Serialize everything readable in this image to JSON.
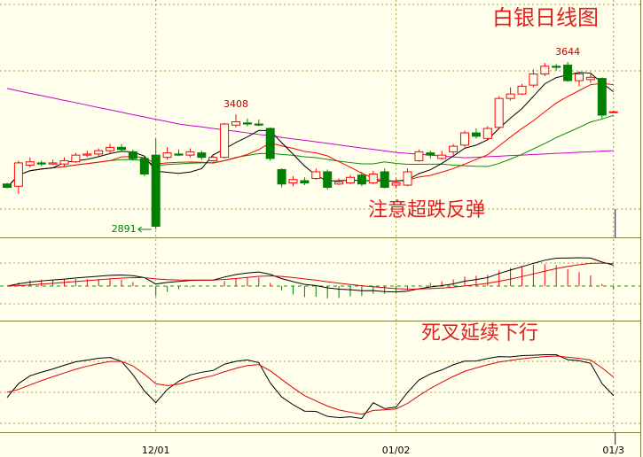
{
  "chart_data": {
    "type": "candlestick",
    "title": "白银日线图",
    "annotations": [
      "注意超跌反弹",
      "死叉延续下行"
    ],
    "categories": [
      null,
      null,
      null,
      null,
      null,
      null,
      null,
      null,
      null,
      null,
      null,
      null,
      null,
      "12/01",
      null,
      null,
      null,
      null,
      null,
      null,
      null,
      null,
      null,
      null,
      null,
      null,
      null,
      null,
      null,
      null,
      null,
      null,
      null,
      null,
      "01/02",
      null,
      null,
      null,
      null,
      null,
      null,
      null,
      null,
      null,
      null,
      null,
      null,
      null,
      null,
      null,
      null,
      null,
      null,
      "01/3"
    ],
    "open": [
      3095,
      3085,
      3180,
      3190,
      3185,
      3185,
      3195,
      3225,
      3230,
      3245,
      3260,
      3240,
      3210,
      3225,
      3215,
      3230,
      3225,
      3235,
      3200,
      3215,
      3360,
      3370,
      3365,
      3345,
      3160,
      3100,
      3110,
      3120,
      3150,
      3095,
      3100,
      3135,
      3100,
      3150,
      3090,
      3090,
      3200,
      3235,
      3210,
      3240,
      3270,
      3325,
      3300,
      3350,
      3480,
      3500,
      3540,
      3590,
      3625,
      3630,
      3560,
      3565,
      3570,
      3420
    ],
    "high": [
      3100,
      3200,
      3215,
      3200,
      3205,
      3215,
      3235,
      3245,
      3255,
      3275,
      3275,
      3250,
      3215,
      3300,
      3260,
      3250,
      3255,
      3245,
      3225,
      3370,
      3408,
      3390,
      3385,
      3350,
      3165,
      3130,
      3125,
      3165,
      3160,
      3120,
      3135,
      3150,
      3155,
      3165,
      3120,
      3165,
      3250,
      3245,
      3245,
      3275,
      3335,
      3345,
      3355,
      3490,
      3530,
      3545,
      3610,
      3640,
      3635,
      3644,
      3600,
      3590,
      3575,
      3425
    ],
    "low": [
      3075,
      3050,
      3170,
      3175,
      3180,
      3175,
      3190,
      3215,
      3220,
      3235,
      3245,
      3200,
      3130,
      2891,
      3205,
      3220,
      3215,
      3205,
      3195,
      3210,
      3350,
      3355,
      3355,
      3200,
      3080,
      3085,
      3090,
      3115,
      3070,
      3090,
      3095,
      3085,
      3095,
      3075,
      3075,
      3085,
      3195,
      3210,
      3205,
      3225,
      3260,
      3300,
      3295,
      3345,
      3470,
      3495,
      3530,
      3580,
      3605,
      3555,
      3535,
      3550,
      3390,
      3415
    ],
    "close": [
      3080,
      3190,
      3195,
      3185,
      3190,
      3200,
      3225,
      3230,
      3245,
      3260,
      3250,
      3210,
      3140,
      2905,
      3235,
      3225,
      3240,
      3215,
      3215,
      3365,
      3375,
      3365,
      3360,
      3210,
      3095,
      3115,
      3100,
      3150,
      3080,
      3105,
      3125,
      3095,
      3140,
      3080,
      3100,
      3150,
      3240,
      3225,
      3225,
      3265,
      3325,
      3310,
      3345,
      3480,
      3500,
      3535,
      3590,
      3625,
      3620,
      3560,
      3590,
      3575,
      3405,
      3420
    ],
    "reference_line": {
      "color": "#cc00cc",
      "values": [
        3525,
        3514,
        3503,
        3493,
        3482,
        3471,
        3461,
        3450,
        3439,
        3429,
        3418,
        3407,
        3397,
        3386,
        3376,
        3365,
        3358,
        3352,
        3345,
        3338,
        3332,
        3325,
        3318,
        3312,
        3305,
        3298,
        3292,
        3285,
        3278,
        3271,
        3264,
        3257,
        3251,
        3244,
        3237,
        3233,
        3229,
        3225,
        3221,
        3217,
        3213,
        3215,
        3218,
        3220,
        3223,
        3225,
        3228,
        3230,
        3233,
        3235,
        3238,
        3240,
        3243,
        3245
      ]
    },
    "marked_highs": [
      20,
      49
    ],
    "marked_lows": [
      13
    ],
    "up_color": "#ff0000",
    "down_color": "#008000",
    "ylim": [
      2855,
      3923
    ]
  }
}
